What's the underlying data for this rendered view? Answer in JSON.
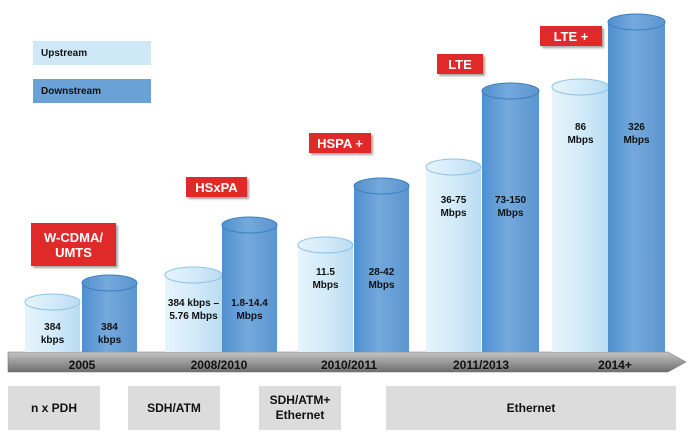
{
  "chart_data": {
    "type": "bar",
    "categories": [
      "2005",
      "2008/2010",
      "2010/2011",
      "2011/2013",
      "2014+"
    ],
    "technologies": [
      "W-CDMA/\nUMTS",
      "HSxPA",
      "HSPA +",
      "LTE",
      "LTE +"
    ],
    "series": [
      {
        "name": "Upstream",
        "labels": [
          "384\nkbps",
          "384 kbps –\n5.76 Mbps",
          "11.5\nMbps",
          "36-75\nMbps",
          "86\nMbps"
        ]
      },
      {
        "name": "Downstream",
        "labels": [
          "384\nkbps",
          "1.8-14.4\nMbps",
          "28-42\nMbps",
          "73-150\nMbps",
          "326\nMbps"
        ]
      }
    ],
    "transport": [
      "n x PDH",
      "SDH/ATM",
      "SDH/ATM+\nEthernet",
      "Ethernet"
    ],
    "colors": {
      "upstream": "#cfe8f7",
      "downstream": "#6aa1d6",
      "tech_badge": "#e02a2a",
      "axis": "#808080"
    }
  }
}
